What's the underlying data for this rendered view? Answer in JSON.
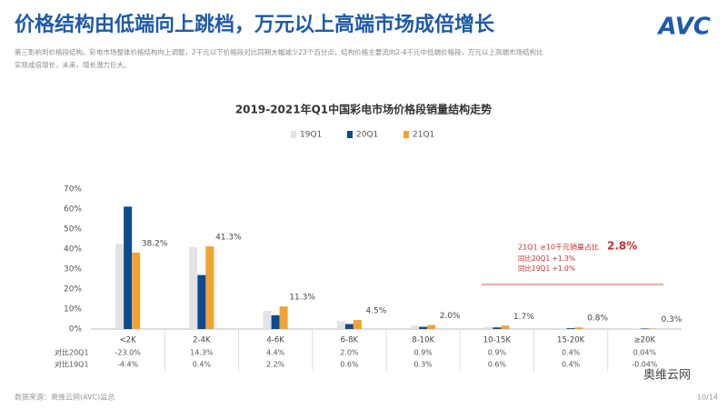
{
  "header": {
    "title": "价格结构由低端向上跳档，万元以上高端市场成倍增长",
    "logo": "AVC",
    "subtitle_lines": [
      "第三影响到价格段结构。彩电市场整体价格结构向上调整，2千元以下价格段对比同期大幅减少23个百分点，结构价格主要流向2-4千元中低端价格段，万元以上高端市场结构比",
      "实现成倍增长，未来，增长潜力巨大。"
    ]
  },
  "chart_data": {
    "type": "bar",
    "title": "2019-2021年Q1中国彩电市场价格段销量结构走势",
    "categories": [
      "<2K",
      "2-4K",
      "4-6K",
      "6-8K",
      "8-10K",
      "10-15K",
      "15-20K",
      "≥20K"
    ],
    "series": [
      {
        "name": "19Q1",
        "color": "#e3e3e3",
        "values": [
          42.6,
          40.9,
          9.1,
          3.9,
          1.7,
          1.1,
          0.4,
          0.34
        ]
      },
      {
        "name": "20Q1",
        "color": "#0e4a8e",
        "values": [
          61.2,
          27.0,
          6.9,
          2.5,
          1.1,
          0.8,
          0.4,
          0.26
        ]
      },
      {
        "name": "21Q1",
        "color": "#f0a232",
        "values": [
          38.2,
          41.3,
          11.3,
          4.5,
          2.0,
          1.7,
          0.8,
          0.3
        ],
        "value_labels": [
          "38.2%",
          "41.3%",
          "11.3%",
          "4.5%",
          "2.0%",
          "1.7%",
          "0.8%",
          "0.3%"
        ]
      }
    ],
    "ylim": [
      0,
      70
    ],
    "yticks": [
      {
        "value": 0,
        "label": "0%"
      },
      {
        "value": 10,
        "label": "10%"
      },
      {
        "value": 20,
        "label": "20%"
      },
      {
        "value": 30,
        "label": "30%"
      },
      {
        "value": 40,
        "label": "40%"
      },
      {
        "value": 50,
        "label": "50%"
      },
      {
        "value": 60,
        "label": "60%"
      },
      {
        "value": 70,
        "label": "70%"
      }
    ],
    "grid": false,
    "legend": "top",
    "comparison_rows": [
      {
        "label": "对比20Q1",
        "values": [
          "-23.0%",
          "14.3%",
          "4.4%",
          "2.0%",
          "0.9%",
          "0.9%",
          "0.4%",
          "0.04%"
        ]
      },
      {
        "label": "对比19Q1",
        "values": [
          "-4.4%",
          "0.4%",
          "2.2%",
          "0.6%",
          "0.3%",
          "0.6%",
          "0.4%",
          "-0.04%"
        ]
      }
    ],
    "annotation": {
      "lead": "21Q1 ≥10千元销量占比",
      "highlight": "2.8%",
      "lines": [
        "同比20Q1  +1.3%",
        "同比19Q1  +1.0%"
      ]
    }
  },
  "footer": {
    "source": "数据来源：奥维云网(AVC)监总",
    "page": "10/14",
    "watermark": "奥维云网"
  }
}
